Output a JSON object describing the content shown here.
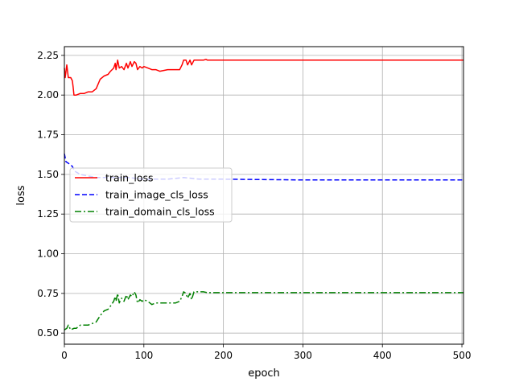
{
  "chart_data": {
    "type": "line",
    "title": "",
    "xlabel": "epoch",
    "ylabel": "loss",
    "xlim": [
      0,
      502
    ],
    "ylim": [
      0.43,
      2.305
    ],
    "xticks": [
      0,
      100,
      200,
      300,
      400,
      500
    ],
    "yticks": [
      0.5,
      0.75,
      1.0,
      1.25,
      1.5,
      1.75,
      2.0,
      2.25
    ],
    "xtick_labels": [
      "0",
      "100",
      "200",
      "300",
      "400",
      "500"
    ],
    "ytick_labels": [
      "0.50",
      "0.75",
      "1.00",
      "1.25",
      "1.50",
      "1.75",
      "2.00",
      "2.25"
    ],
    "grid": true,
    "legend_position": "center-left",
    "series": [
      {
        "name": "train_loss",
        "color": "#ff0000",
        "style": "solid",
        "points": [
          [
            0,
            2.17
          ],
          [
            1,
            2.11
          ],
          [
            3,
            2.19
          ],
          [
            5,
            2.11
          ],
          [
            8,
            2.11
          ],
          [
            10,
            2.09
          ],
          [
            11,
            2.05
          ],
          [
            12,
            2.0
          ],
          [
            15,
            2.0
          ],
          [
            20,
            2.01
          ],
          [
            25,
            2.01
          ],
          [
            30,
            2.02
          ],
          [
            35,
            2.02
          ],
          [
            40,
            2.04
          ],
          [
            45,
            2.1
          ],
          [
            50,
            2.12
          ],
          [
            55,
            2.13
          ],
          [
            58,
            2.15
          ],
          [
            62,
            2.17
          ],
          [
            64,
            2.2
          ],
          [
            65,
            2.16
          ],
          [
            67,
            2.22
          ],
          [
            69,
            2.17
          ],
          [
            72,
            2.18
          ],
          [
            75,
            2.16
          ],
          [
            78,
            2.2
          ],
          [
            80,
            2.17
          ],
          [
            83,
            2.21
          ],
          [
            85,
            2.18
          ],
          [
            88,
            2.21
          ],
          [
            90,
            2.2
          ],
          [
            92,
            2.16
          ],
          [
            95,
            2.18
          ],
          [
            98,
            2.17
          ],
          [
            100,
            2.18
          ],
          [
            105,
            2.17
          ],
          [
            110,
            2.16
          ],
          [
            115,
            2.16
          ],
          [
            120,
            2.15
          ],
          [
            130,
            2.16
          ],
          [
            140,
            2.16
          ],
          [
            145,
            2.16
          ],
          [
            148,
            2.19
          ],
          [
            150,
            2.22
          ],
          [
            153,
            2.22
          ],
          [
            155,
            2.19
          ],
          [
            158,
            2.22
          ],
          [
            160,
            2.19
          ],
          [
            163,
            2.22
          ],
          [
            165,
            2.22
          ],
          [
            170,
            2.22
          ],
          [
            175,
            2.22
          ],
          [
            178,
            2.225
          ],
          [
            180,
            2.22
          ],
          [
            200,
            2.22
          ],
          [
            250,
            2.22
          ],
          [
            300,
            2.22
          ],
          [
            350,
            2.22
          ],
          [
            400,
            2.22
          ],
          [
            450,
            2.22
          ],
          [
            502,
            2.22
          ]
        ]
      },
      {
        "name": "train_image_cls_loss",
        "color": "#0000ff",
        "style": "dashed",
        "points": [
          [
            0,
            1.63
          ],
          [
            2,
            1.58
          ],
          [
            5,
            1.57
          ],
          [
            8,
            1.56
          ],
          [
            10,
            1.55
          ],
          [
            13,
            1.52
          ],
          [
            20,
            1.5
          ],
          [
            40,
            1.48
          ],
          [
            60,
            1.48
          ],
          [
            80,
            1.48
          ],
          [
            100,
            1.47
          ],
          [
            130,
            1.47
          ],
          [
            150,
            1.48
          ],
          [
            170,
            1.47
          ],
          [
            200,
            1.47
          ],
          [
            300,
            1.465
          ],
          [
            400,
            1.465
          ],
          [
            502,
            1.465
          ]
        ]
      },
      {
        "name": "train_domain_cls_loss",
        "color": "#008000",
        "style": "dashdot",
        "points": [
          [
            0,
            0.52
          ],
          [
            3,
            0.53
          ],
          [
            5,
            0.55
          ],
          [
            8,
            0.52
          ],
          [
            12,
            0.53
          ],
          [
            15,
            0.53
          ],
          [
            20,
            0.55
          ],
          [
            25,
            0.55
          ],
          [
            30,
            0.55
          ],
          [
            35,
            0.56
          ],
          [
            40,
            0.57
          ],
          [
            45,
            0.61
          ],
          [
            50,
            0.64
          ],
          [
            55,
            0.65
          ],
          [
            58,
            0.67
          ],
          [
            62,
            0.7
          ],
          [
            64,
            0.73
          ],
          [
            65,
            0.7
          ],
          [
            67,
            0.75
          ],
          [
            69,
            0.69
          ],
          [
            72,
            0.72
          ],
          [
            75,
            0.7
          ],
          [
            78,
            0.74
          ],
          [
            80,
            0.71
          ],
          [
            83,
            0.74
          ],
          [
            85,
            0.73
          ],
          [
            88,
            0.76
          ],
          [
            90,
            0.74
          ],
          [
            92,
            0.69
          ],
          [
            95,
            0.71
          ],
          [
            98,
            0.7
          ],
          [
            100,
            0.71
          ],
          [
            105,
            0.7
          ],
          [
            110,
            0.68
          ],
          [
            115,
            0.69
          ],
          [
            120,
            0.69
          ],
          [
            130,
            0.69
          ],
          [
            140,
            0.69
          ],
          [
            145,
            0.7
          ],
          [
            148,
            0.73
          ],
          [
            150,
            0.76
          ],
          [
            153,
            0.75
          ],
          [
            155,
            0.72
          ],
          [
            158,
            0.75
          ],
          [
            160,
            0.71
          ],
          [
            163,
            0.76
          ],
          [
            165,
            0.76
          ],
          [
            170,
            0.76
          ],
          [
            175,
            0.76
          ],
          [
            180,
            0.755
          ],
          [
            200,
            0.755
          ],
          [
            300,
            0.755
          ],
          [
            400,
            0.755
          ],
          [
            502,
            0.755
          ]
        ]
      }
    ]
  }
}
